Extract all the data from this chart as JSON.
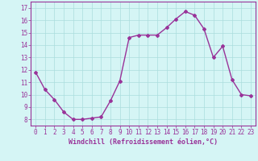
{
  "x": [
    0,
    1,
    2,
    3,
    4,
    5,
    6,
    7,
    8,
    9,
    10,
    11,
    12,
    13,
    14,
    15,
    16,
    17,
    18,
    19,
    20,
    21,
    22,
    23
  ],
  "y": [
    11.8,
    10.4,
    9.6,
    8.6,
    8.0,
    8.0,
    8.1,
    8.2,
    9.5,
    11.1,
    14.6,
    14.8,
    14.8,
    14.8,
    15.4,
    16.1,
    16.7,
    16.4,
    15.3,
    13.0,
    13.9,
    11.2,
    10.0,
    9.9
  ],
  "line_color": "#993399",
  "marker": "D",
  "marker_size": 2,
  "line_width": 1.0,
  "xlabel": "Windchill (Refroidissement éolien,°C)",
  "xlabel_fontsize": 6,
  "xtick_labels": [
    "0",
    "1",
    "2",
    "3",
    "4",
    "5",
    "6",
    "7",
    "8",
    "9",
    "10",
    "11",
    "12",
    "13",
    "14",
    "15",
    "16",
    "17",
    "18",
    "19",
    "20",
    "21",
    "22",
    "23"
  ],
  "ylim": [
    7.5,
    17.5
  ],
  "yticks": [
    8,
    9,
    10,
    11,
    12,
    13,
    14,
    15,
    16,
    17
  ],
  "xlim": [
    -0.5,
    23.5
  ],
  "bg_color": "#d5f5f5",
  "grid_color": "#aadddd",
  "tick_color": "#993399",
  "label_color": "#993399",
  "tick_fontsize": 5.5
}
